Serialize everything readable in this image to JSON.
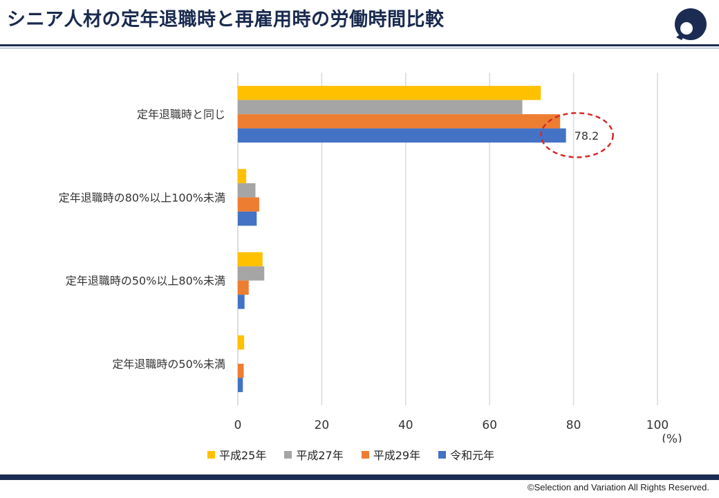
{
  "page": {
    "title": "シニア人材の定年退職時と再雇用時の労働時間比較",
    "copyright": "©Selection and Variation All Rights Reserved."
  },
  "chart_data": {
    "type": "bar",
    "orientation": "horizontal",
    "categories": [
      "定年退職時と同じ",
      "定年退職時の80%以上100%未満",
      "定年退職時の50%以上80%未満",
      "定年退職時の50%未満"
    ],
    "series": [
      {
        "name": "平成25年",
        "color": "#FFC000",
        "values": [
          72.2,
          2.0,
          5.9,
          1.5
        ]
      },
      {
        "name": "平成27年",
        "color": "#A5A5A5",
        "values": [
          67.8,
          4.2,
          6.3,
          0
        ]
      },
      {
        "name": "平成29年",
        "color": "#ED7D31",
        "values": [
          76.8,
          5.1,
          2.6,
          1.4
        ]
      },
      {
        "name": "令和元年",
        "color": "#4472C4",
        "values": [
          78.2,
          4.5,
          1.6,
          1.2
        ]
      }
    ],
    "xlim": [
      0,
      100
    ],
    "xticks": [
      0,
      20,
      40,
      60,
      80,
      100
    ],
    "xlabel": "(%)",
    "annotation": {
      "text": "78.2",
      "series": "令和元年",
      "category": "定年退職時と同じ",
      "style": "red dashed ellipse"
    },
    "legend": "bottom",
    "grid": true
  }
}
